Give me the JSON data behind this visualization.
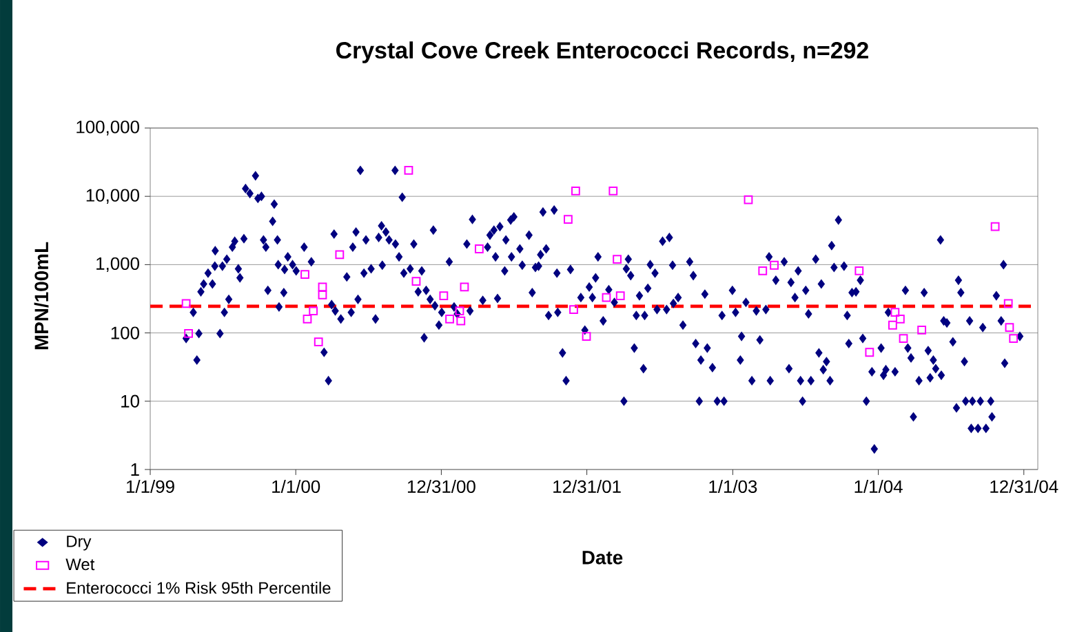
{
  "chart_data": {
    "type": "scatter",
    "title": "Crystal Cove Creek Enterococci Records, n=292",
    "xlabel": "Date",
    "ylabel": "MPN/100mL",
    "xlim": [
      "1999-01-01",
      "2005-02-04"
    ],
    "xticks": [
      {
        "value": "1999-01-01",
        "label": "1/1/99"
      },
      {
        "value": "2000-01-01",
        "label": "1/1/00"
      },
      {
        "value": "2000-12-31",
        "label": "12/31/00"
      },
      {
        "value": "2001-12-31",
        "label": "12/31/01"
      },
      {
        "value": "2003-01-01",
        "label": "1/1/03"
      },
      {
        "value": "2004-01-01",
        "label": "1/1/04"
      },
      {
        "value": "2004-12-31",
        "label": "12/31/04"
      }
    ],
    "ylim": [
      1,
      100000
    ],
    "yticks": [
      1,
      10,
      100,
      {
        "value": 1000,
        "label": "1,000"
      },
      {
        "value": 10000,
        "label": "10,000"
      },
      {
        "value": 100000,
        "label": "100,000"
      }
    ],
    "log": "y",
    "grid": "y",
    "legend": "bottom left",
    "ref_lines": [
      {
        "axis": "y",
        "value": 245,
        "label": "Enterococci 1% Risk 95th Percentile",
        "color": "#ff0000",
        "line_style": "dashed"
      }
    ],
    "series": [
      {
        "name": "Dry",
        "color": "#000080",
        "marker": "diamond",
        "x": [
          "1999-04-01",
          "1999-04-19",
          "1999-05-03",
          "1999-04-28",
          "1999-05-08",
          "1999-05-15",
          "1999-05-26",
          "1999-06-06",
          "1999-06-12",
          "1999-06-13",
          "1999-06-25",
          "1999-07-06",
          "1999-07-01",
          "1999-07-12",
          "1999-07-17",
          "1999-07-26",
          "1999-08-01",
          "1999-08-10",
          "1999-08-14",
          "1999-08-24",
          "1999-08-28",
          "1999-09-08",
          "1999-09-22",
          "1999-09-28",
          "1999-10-07",
          "1999-10-12",
          "1999-10-18",
          "1999-10-23",
          "1999-11-04",
          "1999-11-08",
          "1999-11-16",
          "1999-11-18",
          "1999-11-20",
          "1999-12-02",
          "1999-12-04",
          "1999-12-12",
          "1999-12-24",
          "2000-01-02",
          "2000-01-22",
          "2000-02-09",
          "2000-03-12",
          "2000-03-23",
          "2000-03-31",
          "2000-04-09",
          "2000-04-06",
          "2000-04-23",
          "2000-05-08",
          "2000-05-19",
          "2000-05-23",
          "2000-05-31",
          "2000-06-05",
          "2000-06-11",
          "2000-06-20",
          "2000-06-25",
          "2000-07-08",
          "2000-07-19",
          "2000-07-27",
          "2000-08-03",
          "2000-08-05",
          "2000-08-14",
          "2000-08-22",
          "2000-09-06",
          "2000-09-07",
          "2000-09-16",
          "2000-09-24",
          "2000-09-28",
          "2000-10-14",
          "2000-10-23",
          "2000-11-03",
          "2000-11-12",
          "2000-11-18",
          "2000-11-23",
          "2000-12-03",
          "2000-12-11",
          "2000-12-15",
          "2000-12-25",
          "2001-01-01",
          "2001-01-20",
          "2001-02-01",
          "2001-02-09",
          "2001-03-13",
          "2001-03-05",
          "2001-03-19",
          "2001-04-14",
          "2001-04-26",
          "2001-05-02",
          "2001-05-12",
          "2001-05-16",
          "2001-05-27",
          "2001-05-21",
          "2001-06-08",
          "2001-06-11",
          "2001-06-23",
          "2001-07-01",
          "2001-06-25",
          "2001-07-22",
          "2001-07-16",
          "2001-08-08",
          "2001-08-16",
          "2001-08-24",
          "2001-09-12",
          "2001-10-10",
          "2001-09-20",
          "2001-09-06",
          "2001-09-01",
          "2001-09-26",
          "2001-10-19",
          "2001-10-17",
          "2001-10-31",
          "2001-11-09",
          "2001-11-20",
          "2001-12-16",
          "2001-12-26",
          "2002-01-06",
          "2002-01-14",
          "2002-01-22",
          "2002-01-28",
          "2002-02-10",
          "2002-02-24",
          "2002-03-10",
          "2002-04-03",
          "2002-04-14",
          "2002-04-09",
          "2002-04-20",
          "2002-04-29",
          "2002-05-04",
          "2002-05-12",
          "2002-05-22",
          "2002-05-25",
          "2002-06-02",
          "2002-06-08",
          "2002-06-20",
          "2002-06-25",
          "2002-07-09",
          "2002-07-26",
          "2002-07-19",
          "2002-08-05",
          "2002-08-17",
          "2002-08-03",
          "2002-08-29",
          "2002-09-15",
          "2002-09-24",
          "2002-09-30",
          "2002-10-09",
          "2002-10-13",
          "2002-10-23",
          "2002-10-29",
          "2002-11-11",
          "2002-11-23",
          "2002-12-10",
          "2002-12-05",
          "2002-12-31",
          "2003-01-08",
          "2003-01-20",
          "2003-01-23",
          "2003-02-03",
          "2003-02-18",
          "2003-03-01",
          "2003-03-10",
          "2003-03-25",
          "2003-04-05",
          "2003-04-02",
          "2003-04-19",
          "2003-05-10",
          "2003-05-22",
          "2003-05-27",
          "2003-06-06",
          "2003-06-14",
          "2003-06-20",
          "2003-06-25",
          "2003-07-03",
          "2003-07-10",
          "2003-07-16",
          "2003-07-28",
          "2003-08-05",
          "2003-08-11",
          "2003-08-16",
          "2003-08-24",
          "2003-09-02",
          "2003-09-06",
          "2003-09-12",
          "2003-09-23",
          "2003-10-07",
          "2003-10-15",
          "2003-10-19",
          "2003-10-27",
          "2003-11-06",
          "2003-11-17",
          "2003-11-23",
          "2003-12-02",
          "2003-12-16",
          "2003-12-22",
          "2004-01-08",
          "2004-01-14",
          "2004-01-20",
          "2004-01-26",
          "2004-02-12",
          "2004-03-09",
          "2004-03-15",
          "2004-03-23",
          "2004-03-29",
          "2004-04-12",
          "2004-04-25",
          "2004-05-05",
          "2004-05-10",
          "2004-05-18",
          "2004-05-24",
          "2004-06-05",
          "2004-06-07",
          "2004-06-13",
          "2004-06-21",
          "2004-07-06",
          "2004-07-15",
          "2004-07-20",
          "2004-07-26",
          "2004-08-04",
          "2004-08-07",
          "2004-08-17",
          "2004-08-21",
          "2004-08-24",
          "2004-09-07",
          "2004-09-13",
          "2004-09-19",
          "2004-09-27",
          "2004-10-09",
          "2004-10-12",
          "2004-10-23",
          "2004-11-04",
          "2004-11-10",
          "2004-11-13",
          "2004-12-21"
        ],
        "values": [
          83,
          200,
          98,
          40,
          400,
          520,
          750,
          520,
          950,
          1600,
          98,
          200,
          950,
          1200,
          310,
          1800,
          2200,
          870,
          640,
          2400,
          13000,
          11000,
          20000,
          9300,
          10000,
          2300,
          1800,
          420,
          4300,
          7700,
          2300,
          1000,
          240,
          390,
          850,
          1300,
          1000,
          810,
          1800,
          1100,
          52,
          20,
          260,
          210,
          2800,
          160,
          660,
          200,
          1800,
          3000,
          310,
          24000,
          750,
          2300,
          870,
          160,
          2500,
          3700,
          980,
          3000,
          2300,
          24000,
          2000,
          1300,
          9700,
          750,
          870,
          2000,
          400,
          810,
          85,
          420,
          310,
          3200,
          250,
          130,
          200,
          1100,
          240,
          190,
          210,
          2000,
          4600,
          300,
          1800,
          2700,
          3200,
          1300,
          3600,
          320,
          810,
          2300,
          4500,
          5000,
          1300,
          980,
          1700,
          2700,
          390,
          910,
          5900,
          6300,
          1700,
          1400,
          950,
          180,
          200,
          750,
          51,
          20,
          850,
          330,
          110,
          470,
          330,
          640,
          1300,
          150,
          430,
          280,
          10,
          1200,
          870,
          690,
          60,
          180,
          350,
          30,
          180,
          450,
          1000,
          750,
          220,
          2200,
          2500,
          220,
          270,
          330,
          980,
          130,
          1100,
          690,
          70,
          10,
          40,
          370,
          60,
          31,
          10,
          10,
          180,
          420,
          200,
          40,
          89,
          280,
          20,
          210,
          79,
          220,
          20,
          1300,
          590,
          1100,
          30,
          550,
          330,
          810,
          20,
          10,
          420,
          190,
          20,
          1200,
          51,
          520,
          29,
          38,
          20,
          1900,
          910,
          4500,
          950,
          180,
          70,
          390,
          400,
          590,
          83,
          10,
          27,
          2,
          60,
          24,
          29,
          200,
          27,
          420,
          60,
          43,
          5.9,
          20,
          390,
          55,
          22,
          40,
          30,
          2300,
          24,
          150,
          140,
          74,
          8,
          590,
          390,
          38,
          10,
          150,
          4,
          10,
          4,
          10,
          120,
          4,
          10,
          5.9,
          350,
          150,
          1000,
          36,
          89
        ]
      },
      {
        "name": "Wet",
        "color": "#ff00ff",
        "marker": "square",
        "x": [
          "1999-04-01",
          "1999-04-07",
          "2000-01-24",
          "2000-01-30",
          "2000-02-14",
          "2000-03-08",
          "2000-03-08",
          "2000-02-27",
          "2000-04-20",
          "2000-10-10",
          "2000-10-29",
          "2001-01-06",
          "2001-01-21",
          "2001-02-15",
          "2001-02-18",
          "2001-02-27",
          "2001-04-05",
          "2001-11-14",
          "2001-11-28",
          "2001-12-03",
          "2001-12-30",
          "2002-02-18",
          "2002-03-07",
          "2002-03-17",
          "2002-03-25",
          "2003-02-09",
          "2003-03-17",
          "2003-04-15",
          "2003-11-14",
          "2003-12-10",
          "2004-02-06",
          "2004-02-12",
          "2004-02-25",
          "2004-03-04",
          "2004-04-19",
          "2004-10-20",
          "2004-11-22",
          "2004-11-25",
          "2004-12-05"
        ],
        "values": [
          270,
          98,
          720,
          160,
          210,
          470,
          360,
          74,
          1400,
          24000,
          570,
          350,
          160,
          210,
          150,
          470,
          1700,
          4600,
          220,
          12000,
          89,
          330,
          12000,
          1200,
          350,
          8900,
          810,
          980,
          810,
          52,
          130,
          200,
          160,
          83,
          110,
          3600,
          270,
          120,
          83
        ]
      }
    ]
  }
}
